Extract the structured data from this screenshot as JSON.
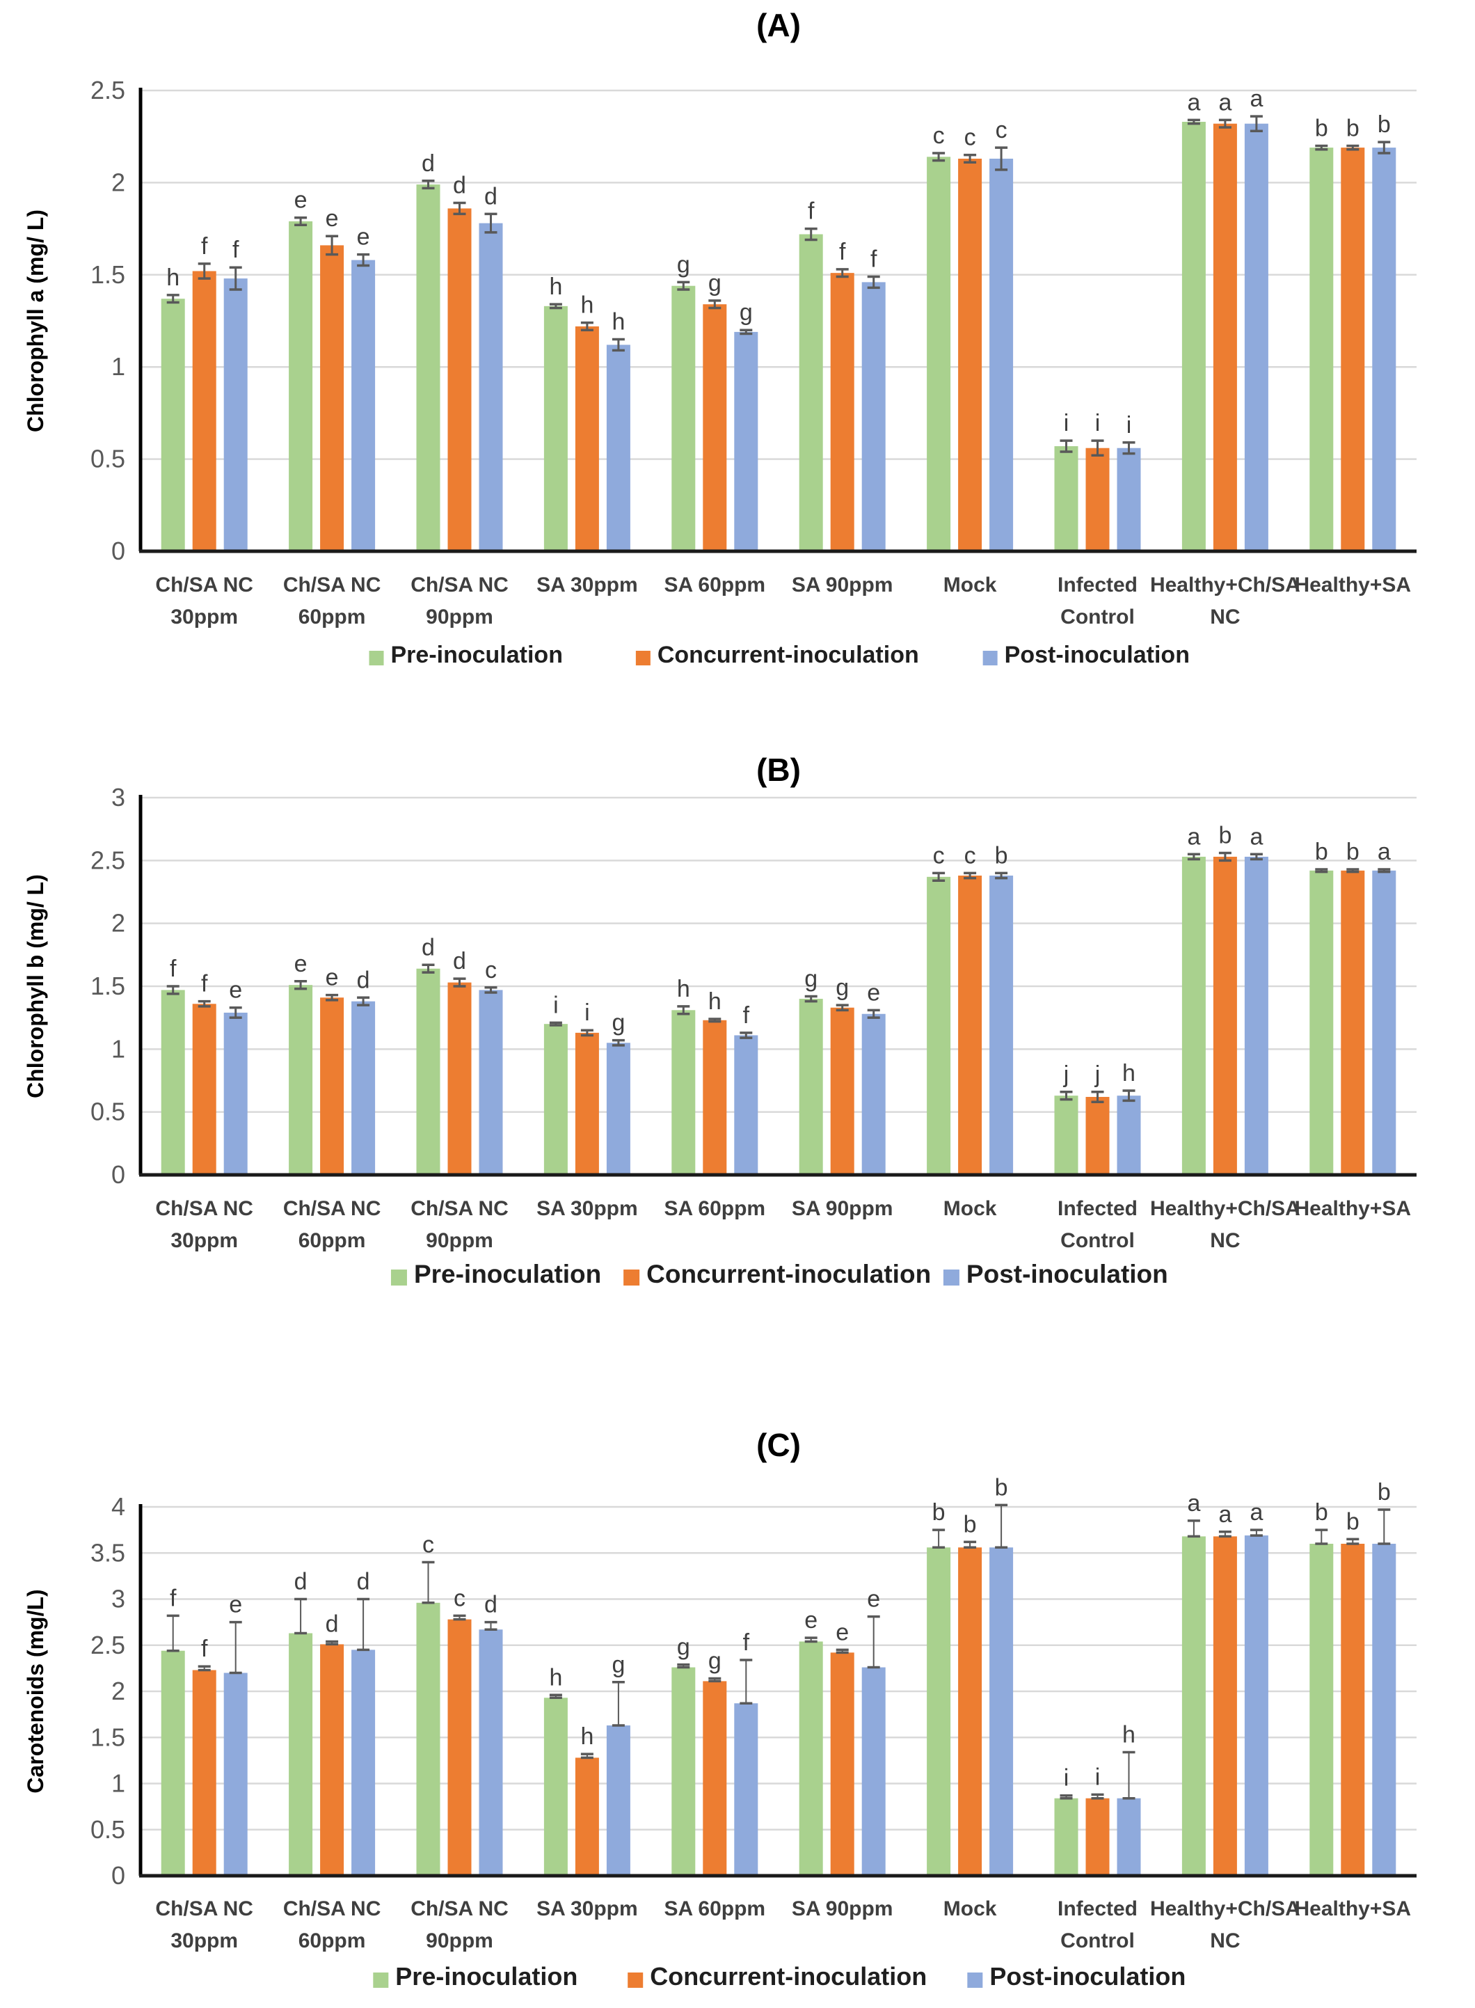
{
  "figure_colors": {
    "pre": "#A9D18E",
    "concurrent": "#ED7D31",
    "post": "#8FAADC",
    "grid": "#D9D9D9",
    "axis": "#1a1a1a",
    "tick_label": "#595959",
    "category_label": "#3f3f3f",
    "letter": "#3f3f3f",
    "error_bar": "#595959",
    "legend_text": "#1f1f1f"
  },
  "legend": {
    "items": [
      {
        "key": "pre",
        "label": "Pre-inoculation"
      },
      {
        "key": "concurrent",
        "label": "Concurrent-inoculation"
      },
      {
        "key": "post",
        "label": "Post-inoculation"
      }
    ]
  },
  "chart_data": [
    {
      "id": "A",
      "type": "bar",
      "title": "(A)",
      "ylabel": "Chlorophyll a (mg/ L)",
      "xlabel": "",
      "ylim": [
        0,
        2.5
      ],
      "ystep": 0.5,
      "grid": true,
      "legend_position": "bottom",
      "error_style": "symmetric",
      "categories": [
        [
          "Ch/SA NC",
          "30ppm"
        ],
        [
          "Ch/SA NC",
          "60ppm"
        ],
        [
          "Ch/SA NC",
          "90ppm"
        ],
        [
          "SA 30ppm"
        ],
        [
          "SA 60ppm"
        ],
        [
          "SA 90ppm"
        ],
        [
          "Mock"
        ],
        [
          "Infected",
          "Control"
        ],
        [
          "Healthy+Ch/SA",
          "NC"
        ],
        [
          "Healthy+SA"
        ]
      ],
      "series": [
        {
          "name": "Pre-inoculation",
          "values": [
            1.37,
            1.79,
            1.99,
            1.33,
            1.44,
            1.72,
            2.14,
            0.57,
            2.33,
            2.19
          ],
          "errors": [
            0.02,
            0.02,
            0.02,
            0.01,
            0.02,
            0.03,
            0.02,
            0.03,
            0.01,
            0.01
          ],
          "letters": [
            "h",
            "e",
            "d",
            "h",
            "g",
            "f",
            "c",
            "i",
            "a",
            "b"
          ]
        },
        {
          "name": "Concurrent-inoculation",
          "values": [
            1.52,
            1.66,
            1.86,
            1.22,
            1.34,
            1.51,
            2.13,
            0.56,
            2.32,
            2.19
          ],
          "errors": [
            0.04,
            0.05,
            0.03,
            0.02,
            0.02,
            0.02,
            0.02,
            0.04,
            0.02,
            0.01
          ],
          "letters": [
            "f",
            "e",
            "d",
            "h",
            "g",
            "f",
            "c",
            "i",
            "a",
            "b"
          ]
        },
        {
          "name": "Post-inoculation",
          "values": [
            1.48,
            1.58,
            1.78,
            1.12,
            1.19,
            1.46,
            2.13,
            0.56,
            2.32,
            2.19
          ],
          "errors": [
            0.06,
            0.03,
            0.05,
            0.03,
            0.01,
            0.03,
            0.06,
            0.03,
            0.04,
            0.03
          ],
          "letters": [
            "f",
            "e",
            "d",
            "h",
            "g",
            "f",
            "c",
            "i",
            "a",
            "b"
          ]
        }
      ]
    },
    {
      "id": "B",
      "type": "bar",
      "title": "(B)",
      "ylabel": "Chlorophyll b (mg/ L)",
      "xlabel": "",
      "ylim": [
        0,
        3
      ],
      "ystep": 0.5,
      "grid": true,
      "legend_position": "bottom",
      "error_style": "symmetric",
      "categories": [
        [
          "Ch/SA NC",
          "30ppm"
        ],
        [
          "Ch/SA NC",
          "60ppm"
        ],
        [
          "Ch/SA NC",
          "90ppm"
        ],
        [
          "SA 30ppm"
        ],
        [
          "SA 60ppm"
        ],
        [
          "SA 90ppm"
        ],
        [
          "Mock"
        ],
        [
          "Infected",
          "Control"
        ],
        [
          "Healthy+Ch/SA",
          "NC"
        ],
        [
          "Healthy+SA"
        ]
      ],
      "series": [
        {
          "name": "Pre-inoculation",
          "values": [
            1.47,
            1.51,
            1.64,
            1.2,
            1.31,
            1.4,
            2.37,
            0.63,
            2.53,
            2.42
          ],
          "errors": [
            0.03,
            0.03,
            0.03,
            0.01,
            0.03,
            0.02,
            0.03,
            0.03,
            0.02,
            0.01
          ],
          "letters": [
            "f",
            "e",
            "d",
            "i",
            "h",
            "g",
            "c",
            "j",
            "a",
            "b"
          ]
        },
        {
          "name": "Concurrent-inoculation",
          "values": [
            1.36,
            1.41,
            1.53,
            1.13,
            1.23,
            1.33,
            2.38,
            0.62,
            2.53,
            2.42
          ],
          "errors": [
            0.02,
            0.02,
            0.03,
            0.02,
            0.01,
            0.02,
            0.02,
            0.04,
            0.03,
            0.01
          ],
          "letters": [
            "f",
            "e",
            "d",
            "i",
            "h",
            "g",
            "c",
            "j",
            "b",
            "b"
          ]
        },
        {
          "name": "Post-inoculation",
          "values": [
            1.29,
            1.38,
            1.47,
            1.05,
            1.11,
            1.28,
            2.38,
            0.63,
            2.53,
            2.42
          ],
          "errors": [
            0.04,
            0.03,
            0.02,
            0.02,
            0.02,
            0.03,
            0.02,
            0.04,
            0.02,
            0.01
          ],
          "letters": [
            "e",
            "d",
            "c",
            "g",
            "f",
            "e",
            "b",
            "h",
            "a",
            "a"
          ]
        }
      ]
    },
    {
      "id": "C",
      "type": "bar",
      "title": "(C)",
      "ylabel": "Carotenoids (mg/L)",
      "xlabel": "",
      "ylim": [
        0,
        4
      ],
      "ystep": 0.5,
      "grid": true,
      "legend_position": "bottom",
      "error_style": "upper",
      "categories": [
        [
          "Ch/SA NC",
          "30ppm"
        ],
        [
          "Ch/SA NC",
          "60ppm"
        ],
        [
          "Ch/SA NC",
          "90ppm"
        ],
        [
          "SA 30ppm"
        ],
        [
          "SA 60ppm"
        ],
        [
          "SA 90ppm"
        ],
        [
          "Mock"
        ],
        [
          "Infected",
          "Control"
        ],
        [
          "Healthy+Ch/SA",
          "NC"
        ],
        [
          "Healthy+SA"
        ]
      ],
      "series": [
        {
          "name": "Pre-inoculation",
          "values": [
            2.44,
            2.63,
            2.96,
            1.93,
            2.26,
            2.54,
            3.56,
            0.84,
            3.68,
            3.6
          ],
          "errors": [
            0.38,
            0.37,
            0.44,
            0.03,
            0.03,
            0.04,
            0.19,
            0.03,
            0.17,
            0.15
          ],
          "letters": [
            "f",
            "d",
            "c",
            "h",
            "g",
            "e",
            "b",
            "i",
            "a",
            "b"
          ]
        },
        {
          "name": "Concurrent-inoculation",
          "values": [
            2.23,
            2.51,
            2.78,
            1.28,
            2.11,
            2.42,
            3.56,
            0.84,
            3.68,
            3.6
          ],
          "errors": [
            0.04,
            0.03,
            0.04,
            0.04,
            0.03,
            0.03,
            0.06,
            0.04,
            0.05,
            0.05
          ],
          "letters": [
            "f",
            "d",
            "c",
            "h",
            "g",
            "e",
            "b",
            "i",
            "a",
            "b"
          ]
        },
        {
          "name": "Post-inoculation",
          "values": [
            2.2,
            2.45,
            2.67,
            1.63,
            1.87,
            2.26,
            3.56,
            0.84,
            3.69,
            3.6
          ],
          "errors": [
            0.55,
            0.55,
            0.08,
            0.47,
            0.47,
            0.55,
            0.46,
            0.5,
            0.06,
            0.37
          ],
          "letters": [
            "e",
            "d",
            "d",
            "g",
            "f",
            "e",
            "b",
            "h",
            "a",
            "b"
          ]
        }
      ]
    }
  ]
}
